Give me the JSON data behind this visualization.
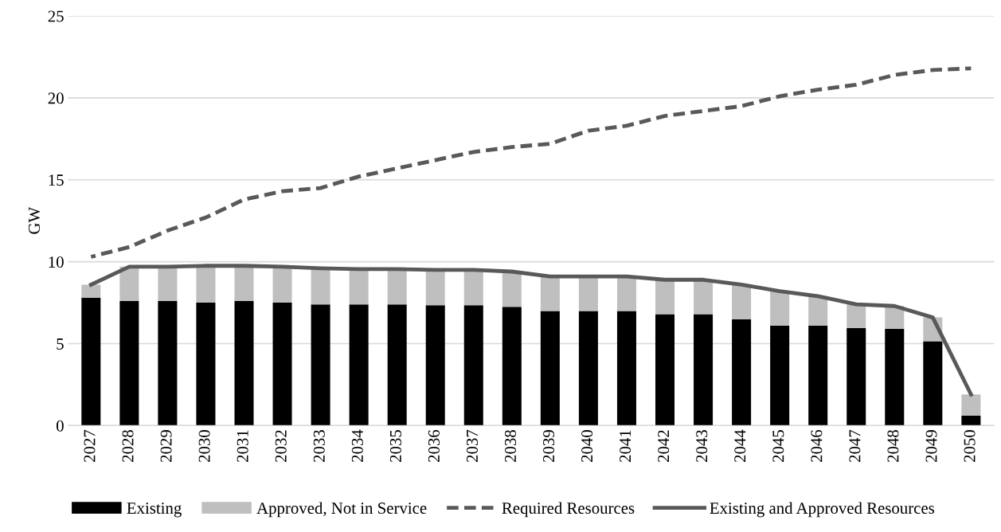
{
  "chart_data": {
    "type": "bar",
    "stacked": true,
    "ylabel": "GW",
    "categories": [
      "2027",
      "2028",
      "2029",
      "2030",
      "2031",
      "2032",
      "2033",
      "2034",
      "2035",
      "2036",
      "2037",
      "2038",
      "2039",
      "2040",
      "2041",
      "2042",
      "2043",
      "2044",
      "2045",
      "2046",
      "2047",
      "2048",
      "2049",
      "2050"
    ],
    "series": [
      {
        "name": "Existing",
        "color": "#000000",
        "values": [
          7.8,
          7.6,
          7.6,
          7.5,
          7.6,
          7.5,
          7.4,
          7.4,
          7.4,
          7.35,
          7.35,
          7.25,
          7.0,
          7.0,
          7.0,
          6.8,
          6.8,
          6.5,
          6.1,
          6.1,
          5.95,
          5.9,
          5.15,
          0.6
        ]
      },
      {
        "name": "Approved, Not in Service",
        "color": "#bfbfbf",
        "values": [
          0.8,
          2.1,
          2.1,
          2.25,
          2.15,
          2.2,
          2.2,
          2.15,
          2.15,
          2.15,
          2.15,
          2.15,
          2.1,
          2.1,
          2.1,
          2.1,
          2.1,
          2.1,
          2.1,
          1.8,
          1.45,
          1.4,
          1.45,
          1.3
        ]
      },
      {
        "name": "Required Resources",
        "type": "line",
        "line_style": "dashed",
        "color": "#595959",
        "values": [
          10.3,
          10.9,
          11.9,
          12.7,
          13.8,
          14.3,
          14.5,
          15.2,
          15.7,
          16.2,
          16.7,
          17.0,
          17.2,
          18.0,
          18.3,
          18.9,
          19.2,
          19.5,
          20.1,
          20.5,
          20.8,
          21.4,
          21.7,
          21.8
        ]
      },
      {
        "name": "Existing and Approved Resources",
        "type": "line",
        "line_style": "solid",
        "color": "#595959",
        "values": [
          8.6,
          9.7,
          9.7,
          9.75,
          9.75,
          9.7,
          9.6,
          9.55,
          9.55,
          9.5,
          9.5,
          9.4,
          9.1,
          9.1,
          9.1,
          8.9,
          8.9,
          8.6,
          8.2,
          7.9,
          7.4,
          7.3,
          6.6,
          1.9
        ]
      }
    ],
    "ylim": [
      0,
      25
    ],
    "yticks": [
      0,
      5,
      10,
      15,
      20,
      25
    ],
    "grid": "y",
    "legend": "bottom"
  }
}
